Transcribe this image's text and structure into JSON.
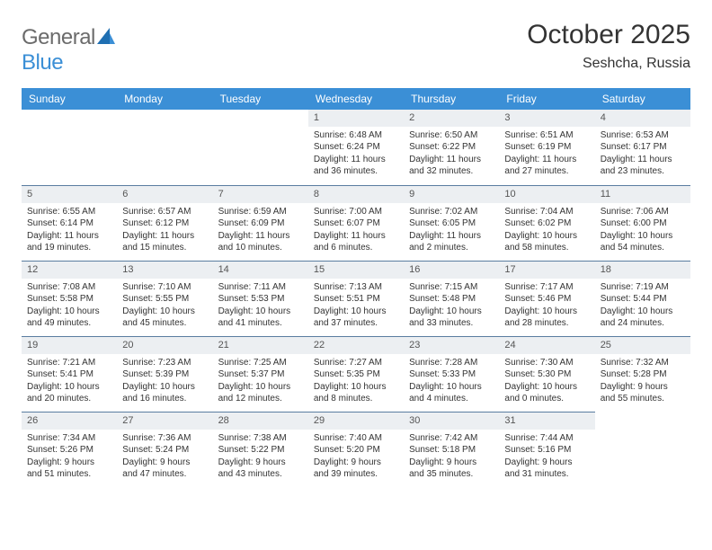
{
  "brand": {
    "part1": "General",
    "part2": "Blue"
  },
  "title": "October 2025",
  "location": "Seshcha, Russia",
  "colors": {
    "header_bg": "#3b8fd6",
    "header_text": "#ffffff",
    "daynum_bg": "#eceff2",
    "row_divider": "#5a7da0",
    "text": "#333333",
    "logo_gray": "#6b6b6b",
    "logo_blue": "#3b8fd6",
    "page_bg": "#ffffff"
  },
  "weekdays": [
    "Sunday",
    "Monday",
    "Tuesday",
    "Wednesday",
    "Thursday",
    "Friday",
    "Saturday"
  ],
  "weeks": [
    [
      {
        "blank": true
      },
      {
        "blank": true
      },
      {
        "blank": true
      },
      {
        "day": "1",
        "sunrise": "Sunrise: 6:48 AM",
        "sunset": "Sunset: 6:24 PM",
        "daylight": "Daylight: 11 hours and 36 minutes."
      },
      {
        "day": "2",
        "sunrise": "Sunrise: 6:50 AM",
        "sunset": "Sunset: 6:22 PM",
        "daylight": "Daylight: 11 hours and 32 minutes."
      },
      {
        "day": "3",
        "sunrise": "Sunrise: 6:51 AM",
        "sunset": "Sunset: 6:19 PM",
        "daylight": "Daylight: 11 hours and 27 minutes."
      },
      {
        "day": "4",
        "sunrise": "Sunrise: 6:53 AM",
        "sunset": "Sunset: 6:17 PM",
        "daylight": "Daylight: 11 hours and 23 minutes."
      }
    ],
    [
      {
        "day": "5",
        "sunrise": "Sunrise: 6:55 AM",
        "sunset": "Sunset: 6:14 PM",
        "daylight": "Daylight: 11 hours and 19 minutes."
      },
      {
        "day": "6",
        "sunrise": "Sunrise: 6:57 AM",
        "sunset": "Sunset: 6:12 PM",
        "daylight": "Daylight: 11 hours and 15 minutes."
      },
      {
        "day": "7",
        "sunrise": "Sunrise: 6:59 AM",
        "sunset": "Sunset: 6:09 PM",
        "daylight": "Daylight: 11 hours and 10 minutes."
      },
      {
        "day": "8",
        "sunrise": "Sunrise: 7:00 AM",
        "sunset": "Sunset: 6:07 PM",
        "daylight": "Daylight: 11 hours and 6 minutes."
      },
      {
        "day": "9",
        "sunrise": "Sunrise: 7:02 AM",
        "sunset": "Sunset: 6:05 PM",
        "daylight": "Daylight: 11 hours and 2 minutes."
      },
      {
        "day": "10",
        "sunrise": "Sunrise: 7:04 AM",
        "sunset": "Sunset: 6:02 PM",
        "daylight": "Daylight: 10 hours and 58 minutes."
      },
      {
        "day": "11",
        "sunrise": "Sunrise: 7:06 AM",
        "sunset": "Sunset: 6:00 PM",
        "daylight": "Daylight: 10 hours and 54 minutes."
      }
    ],
    [
      {
        "day": "12",
        "sunrise": "Sunrise: 7:08 AM",
        "sunset": "Sunset: 5:58 PM",
        "daylight": "Daylight: 10 hours and 49 minutes."
      },
      {
        "day": "13",
        "sunrise": "Sunrise: 7:10 AM",
        "sunset": "Sunset: 5:55 PM",
        "daylight": "Daylight: 10 hours and 45 minutes."
      },
      {
        "day": "14",
        "sunrise": "Sunrise: 7:11 AM",
        "sunset": "Sunset: 5:53 PM",
        "daylight": "Daylight: 10 hours and 41 minutes."
      },
      {
        "day": "15",
        "sunrise": "Sunrise: 7:13 AM",
        "sunset": "Sunset: 5:51 PM",
        "daylight": "Daylight: 10 hours and 37 minutes."
      },
      {
        "day": "16",
        "sunrise": "Sunrise: 7:15 AM",
        "sunset": "Sunset: 5:48 PM",
        "daylight": "Daylight: 10 hours and 33 minutes."
      },
      {
        "day": "17",
        "sunrise": "Sunrise: 7:17 AM",
        "sunset": "Sunset: 5:46 PM",
        "daylight": "Daylight: 10 hours and 28 minutes."
      },
      {
        "day": "18",
        "sunrise": "Sunrise: 7:19 AM",
        "sunset": "Sunset: 5:44 PM",
        "daylight": "Daylight: 10 hours and 24 minutes."
      }
    ],
    [
      {
        "day": "19",
        "sunrise": "Sunrise: 7:21 AM",
        "sunset": "Sunset: 5:41 PM",
        "daylight": "Daylight: 10 hours and 20 minutes."
      },
      {
        "day": "20",
        "sunrise": "Sunrise: 7:23 AM",
        "sunset": "Sunset: 5:39 PM",
        "daylight": "Daylight: 10 hours and 16 minutes."
      },
      {
        "day": "21",
        "sunrise": "Sunrise: 7:25 AM",
        "sunset": "Sunset: 5:37 PM",
        "daylight": "Daylight: 10 hours and 12 minutes."
      },
      {
        "day": "22",
        "sunrise": "Sunrise: 7:27 AM",
        "sunset": "Sunset: 5:35 PM",
        "daylight": "Daylight: 10 hours and 8 minutes."
      },
      {
        "day": "23",
        "sunrise": "Sunrise: 7:28 AM",
        "sunset": "Sunset: 5:33 PM",
        "daylight": "Daylight: 10 hours and 4 minutes."
      },
      {
        "day": "24",
        "sunrise": "Sunrise: 7:30 AM",
        "sunset": "Sunset: 5:30 PM",
        "daylight": "Daylight: 10 hours and 0 minutes."
      },
      {
        "day": "25",
        "sunrise": "Sunrise: 7:32 AM",
        "sunset": "Sunset: 5:28 PM",
        "daylight": "Daylight: 9 hours and 55 minutes."
      }
    ],
    [
      {
        "day": "26",
        "sunrise": "Sunrise: 7:34 AM",
        "sunset": "Sunset: 5:26 PM",
        "daylight": "Daylight: 9 hours and 51 minutes."
      },
      {
        "day": "27",
        "sunrise": "Sunrise: 7:36 AM",
        "sunset": "Sunset: 5:24 PM",
        "daylight": "Daylight: 9 hours and 47 minutes."
      },
      {
        "day": "28",
        "sunrise": "Sunrise: 7:38 AM",
        "sunset": "Sunset: 5:22 PM",
        "daylight": "Daylight: 9 hours and 43 minutes."
      },
      {
        "day": "29",
        "sunrise": "Sunrise: 7:40 AM",
        "sunset": "Sunset: 5:20 PM",
        "daylight": "Daylight: 9 hours and 39 minutes."
      },
      {
        "day": "30",
        "sunrise": "Sunrise: 7:42 AM",
        "sunset": "Sunset: 5:18 PM",
        "daylight": "Daylight: 9 hours and 35 minutes."
      },
      {
        "day": "31",
        "sunrise": "Sunrise: 7:44 AM",
        "sunset": "Sunset: 5:16 PM",
        "daylight": "Daylight: 9 hours and 31 minutes."
      },
      {
        "blank": true
      }
    ]
  ]
}
